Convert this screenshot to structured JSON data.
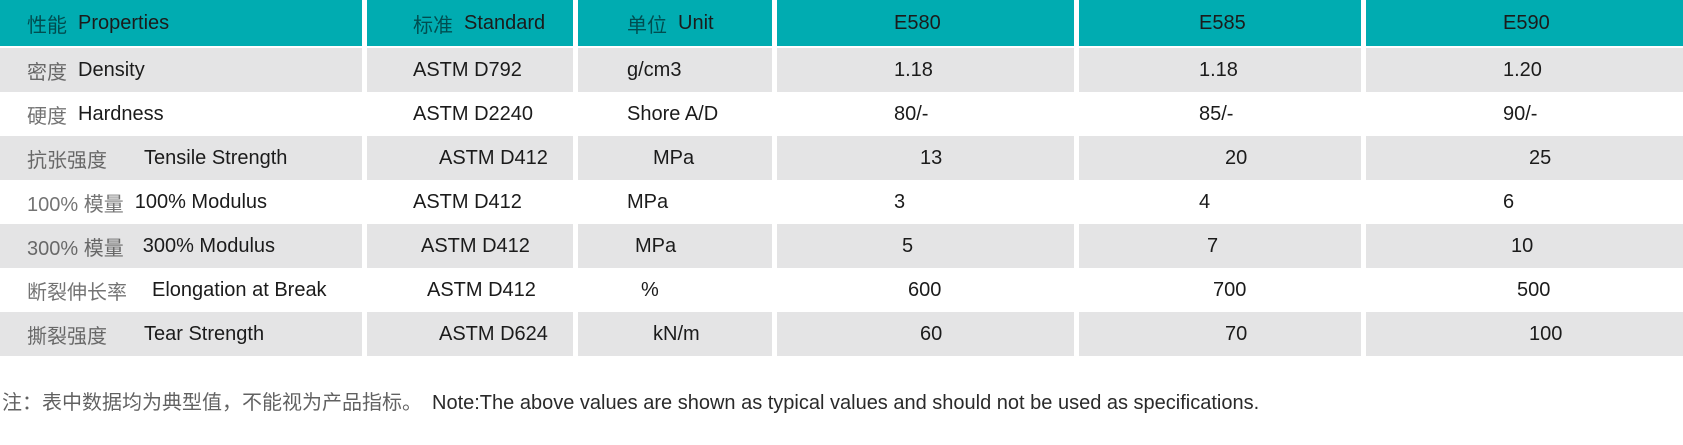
{
  "table": {
    "header": {
      "properties": {
        "cn": "性能",
        "en": "Properties"
      },
      "standard": {
        "cn": "标准",
        "en": "Standard"
      },
      "unit": {
        "cn": "单位",
        "en": "Unit"
      },
      "products": [
        "E580",
        "E585",
        "E590"
      ]
    },
    "rows": [
      {
        "cn": "密度",
        "en": "Density",
        "standard": "ASTM D792",
        "unit": "g/cm3",
        "values": [
          "1.18",
          "1.18",
          "1.20"
        ]
      },
      {
        "cn": "硬度",
        "en": "Hardness",
        "standard": "ASTM D2240",
        "unit": "Shore A/D",
        "values": [
          "80/-",
          "85/-",
          "90/-"
        ]
      },
      {
        "cn": "抗张强度",
        "en": "Tensile Strength",
        "standard": "ASTM D412",
        "unit": "MPa",
        "values": [
          "13",
          "20",
          "25"
        ]
      },
      {
        "cn": "100% 模量",
        "en": "100% Modulus",
        "standard": "ASTM D412",
        "unit": "MPa",
        "values": [
          "3",
          "4",
          "6"
        ]
      },
      {
        "cn": "300% 模量",
        "en": "300% Modulus",
        "standard": "ASTM D412",
        "unit": "MPa",
        "values": [
          "5",
          "7",
          "10"
        ]
      },
      {
        "cn": "断裂伸长率",
        "en": "Elongation at Break",
        "standard": "ASTM D412",
        "unit": "%",
        "values": [
          "600",
          "700",
          "500"
        ]
      },
      {
        "cn": "撕裂强度",
        "en": "Tear Strength",
        "standard": "ASTM D624",
        "unit": "kN/m",
        "values": [
          "60",
          "70",
          "100"
        ]
      }
    ],
    "note": {
      "cn": "注：表中数据均为典型值，不能视为产品指标。",
      "en": "Note:The above values are shown as typical values and should not be used as specifications."
    }
  },
  "colors": {
    "header_bg": "#00acb1",
    "row_alt_bg": "#e4e4e5",
    "row_bg": "#ffffff",
    "text": "#1b1b1b"
  }
}
